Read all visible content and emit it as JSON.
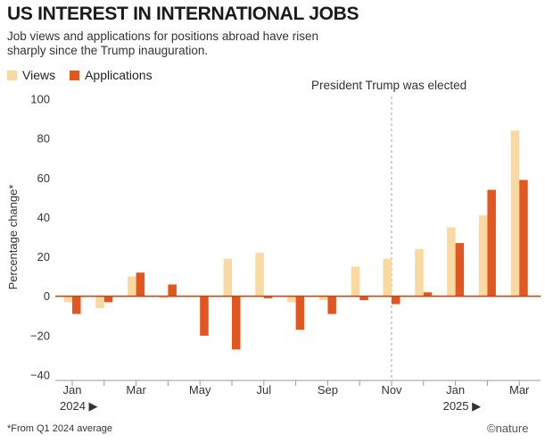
{
  "title": "US INTEREST IN INTERNATIONAL JOBS",
  "subtitle": "Job views and applications for positions abroad have risen sharply since the Trump inauguration.",
  "footnote": "*From Q1 2024 average",
  "credit": "©nature",
  "colors": {
    "views": "#f9d9a0",
    "applications": "#e2561f",
    "zero": "#c94a1a"
  },
  "chart_data": {
    "type": "bar",
    "ylabel": "Percentage change*",
    "ylim": [
      -40,
      100
    ],
    "yticks": [
      100,
      80,
      60,
      40,
      20,
      0,
      -20,
      -40
    ],
    "grid": false,
    "legend_position": "top-left",
    "annotation": "President Trump was elected",
    "annotation_category": "2024-11",
    "categories": [
      "2024-01",
      "2024-02",
      "2024-03",
      "2024-04",
      "2024-05",
      "2024-06",
      "2024-07",
      "2024-08",
      "2024-09",
      "2024-10",
      "2024-11",
      "2024-12",
      "2025-01",
      "2025-02",
      "2025-03"
    ],
    "x_tick_labels": [
      {
        "category": "2024-01",
        "text": "Jan"
      },
      {
        "category": "2024-03",
        "text": "Mar"
      },
      {
        "category": "2024-05",
        "text": "May"
      },
      {
        "category": "2024-07",
        "text": "Jul"
      },
      {
        "category": "2024-09",
        "text": "Sep"
      },
      {
        "category": "2024-11",
        "text": "Nov"
      },
      {
        "category": "2025-01",
        "text": "Jan"
      },
      {
        "category": "2025-03",
        "text": "Mar"
      }
    ],
    "year_labels": [
      {
        "category": "2024-01",
        "text": "2024 ▶"
      },
      {
        "category": "2025-01",
        "text": "2025 ▶"
      }
    ],
    "series": [
      {
        "name": "Views",
        "values": [
          -3,
          -6,
          10,
          -1,
          0,
          19,
          22,
          -3,
          -2,
          15,
          19,
          24,
          35,
          41,
          84
        ]
      },
      {
        "name": "Applications",
        "values": [
          -9,
          -3,
          12,
          6,
          -20,
          -27,
          -1,
          -17,
          -9,
          -2,
          -4,
          2,
          27,
          54,
          59
        ]
      }
    ]
  }
}
